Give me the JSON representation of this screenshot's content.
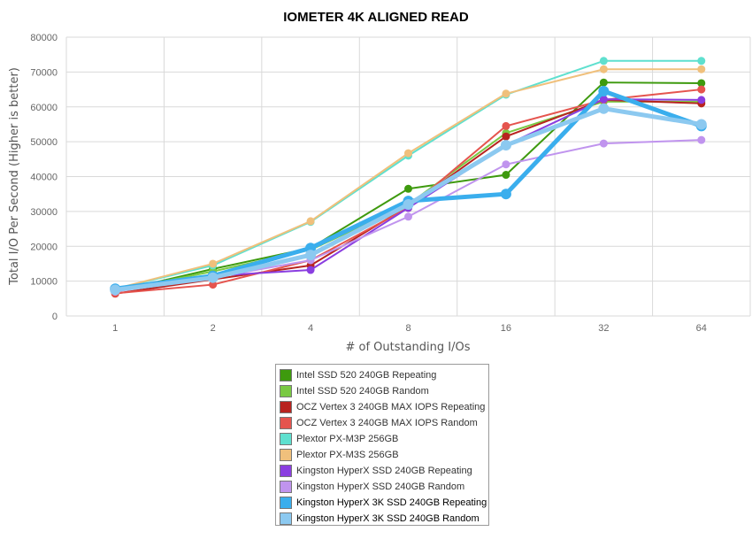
{
  "chart_data": {
    "type": "line",
    "title": "IOMETER 4K ALIGNED READ",
    "xlabel": "# of Outstanding I/Os",
    "ylabel": "Total I/O Per Second (Higher is better)",
    "categories": [
      "1",
      "2",
      "4",
      "8",
      "16",
      "32",
      "64"
    ],
    "ylim": [
      0,
      80000
    ],
    "yticks": [
      0,
      10000,
      20000,
      30000,
      40000,
      50000,
      60000,
      70000,
      80000
    ],
    "grid": true,
    "legend_position": "bottom",
    "series": [
      {
        "name": "Intel SSD 520 240GB Repeating",
        "color": "#3e9a0e",
        "values": [
          7000,
          13500,
          19500,
          36500,
          40500,
          67000,
          66800
        ]
      },
      {
        "name": "Intel SSD 520 240GB Random",
        "color": "#7ac943",
        "values": [
          7200,
          12800,
          19000,
          32000,
          52500,
          61500,
          61500
        ]
      },
      {
        "name": "OCZ Vertex 3 240GB MAX IOPS Repeating",
        "color": "#b8231f",
        "values": [
          6400,
          10500,
          14500,
          31500,
          51500,
          62000,
          61000
        ]
      },
      {
        "name": "OCZ Vertex 3 240GB MAX IOPS Random",
        "color": "#e5544e",
        "values": [
          6500,
          9000,
          16000,
          31000,
          54500,
          62000,
          65000
        ]
      },
      {
        "name": "Plextor PX-M3P 256GB",
        "color": "#5fe0cf",
        "values": [
          7800,
          14500,
          27000,
          46000,
          63500,
          73200,
          73200
        ]
      },
      {
        "name": "Plextor PX-M3S 256GB",
        "color": "#f0c07c",
        "values": [
          7800,
          15000,
          27200,
          46700,
          63800,
          70800,
          70800
        ]
      },
      {
        "name": "Kingston HyperX SSD 240GB Repeating",
        "color": "#8a3ee0",
        "values": [
          7300,
          11500,
          13200,
          31000,
          49000,
          62200,
          62000
        ]
      },
      {
        "name": "Kingston HyperX SSD 240GB Random",
        "color": "#c094ee",
        "values": [
          7000,
          11000,
          16000,
          28500,
          43500,
          49500,
          50500
        ]
      },
      {
        "name": "Kingston HyperX 3K SSD 240GB Repeating",
        "color": "#3aaeed",
        "values": [
          7800,
          11500,
          19500,
          33000,
          35000,
          64500,
          54500
        ]
      },
      {
        "name": "Kingston HyperX 3K SSD 240GB Random",
        "color": "#8cc9f0",
        "values": [
          7500,
          11000,
          17500,
          32000,
          49000,
          59500,
          55000
        ]
      }
    ]
  }
}
